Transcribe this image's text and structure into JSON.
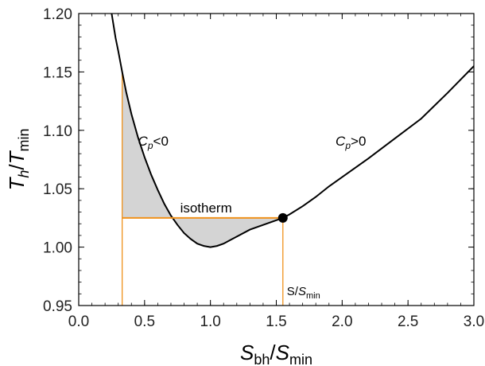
{
  "chart_data": {
    "type": "line",
    "title": "",
    "xlabel": {
      "main": "S",
      "sub": "bh",
      "slash": "/",
      "main2": "S",
      "sub2": "min"
    },
    "ylabel": {
      "main": "T",
      "sub": "h",
      "slash": "/",
      "main2": "T",
      "sub2": "min"
    },
    "xlim": [
      0.0,
      3.0
    ],
    "ylim": [
      0.95,
      1.2
    ],
    "x_ticks": [
      "0.0",
      "0.5",
      "1.0",
      "1.5",
      "2.0",
      "2.5",
      "3.0"
    ],
    "y_ticks": [
      "0.95",
      "1.00",
      "1.05",
      "1.10",
      "1.15",
      "1.20"
    ],
    "grid": false,
    "series": [
      {
        "x": [
          0.25,
          0.28,
          0.3,
          0.33,
          0.36,
          0.4,
          0.45,
          0.5,
          0.55,
          0.6,
          0.65,
          0.7,
          0.75,
          0.8,
          0.85,
          0.9,
          0.95,
          1.0,
          1.05,
          1.1,
          1.15,
          1.2,
          1.3,
          1.4,
          1.5,
          1.55,
          1.6,
          1.7,
          1.8,
          1.9,
          2.0,
          2.2,
          2.4,
          2.6,
          2.8,
          3.0
        ],
        "y": [
          1.2,
          1.179,
          1.168,
          1.15,
          1.133,
          1.114,
          1.094,
          1.077,
          1.062,
          1.049,
          1.037,
          1.027,
          1.019,
          1.012,
          1.007,
          1.003,
          1.001,
          1.0,
          1.001,
          1.003,
          1.006,
          1.009,
          1.015,
          1.019,
          1.023,
          1.025,
          1.028,
          1.035,
          1.043,
          1.052,
          1.06,
          1.076,
          1.093,
          1.11,
          1.132,
          1.155
        ],
        "color": "#000000"
      }
    ],
    "isotherm": {
      "y": 1.025,
      "x_left": 0.33,
      "x_right": 1.55,
      "color": "#f0921c"
    },
    "critical_point": {
      "x": 1.55,
      "y": 1.025
    },
    "annotations": {
      "isotherm": "isotherm",
      "cp_neg": {
        "main": "C",
        "sub": "p",
        "rest": "<0",
        "x": 0.45,
        "y": 1.087
      },
      "cp_pos": {
        "main": "C",
        "sub": "p",
        "rest": ">0",
        "x": 1.95,
        "y": 1.087
      },
      "s_over_smin": {
        "main": "S/",
        "main2": "S",
        "sub": "min"
      }
    },
    "fill_color": "#d4d4d4"
  }
}
